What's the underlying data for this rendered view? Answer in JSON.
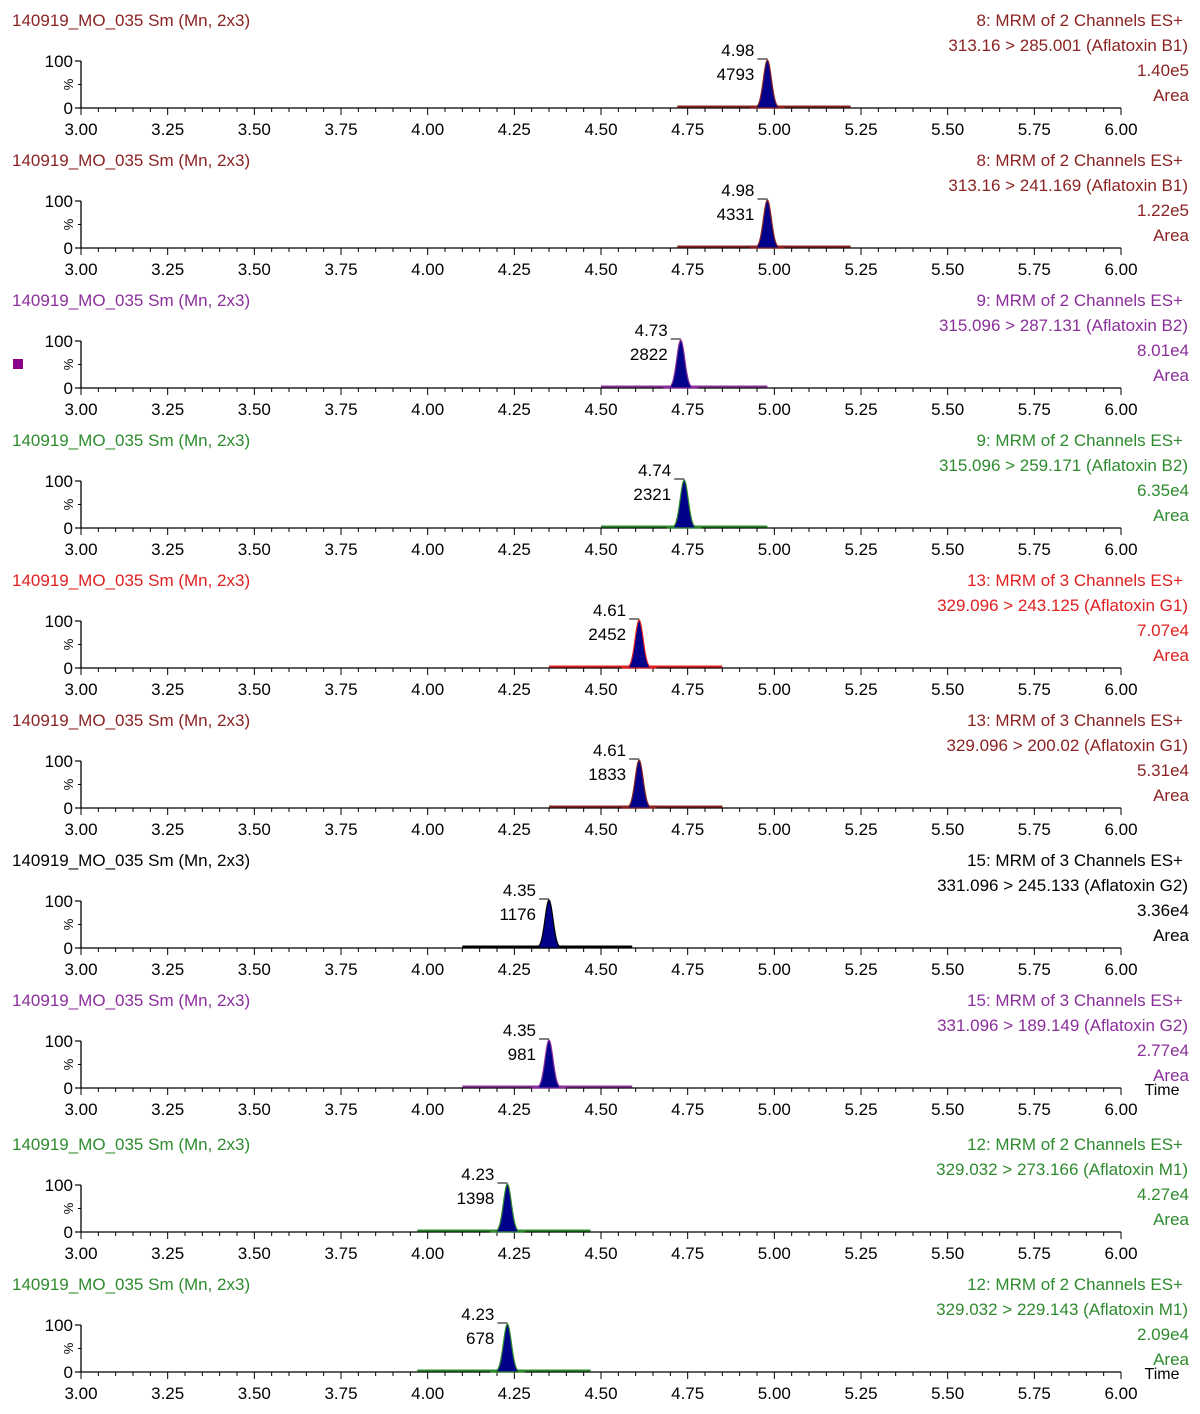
{
  "x_axis": {
    "min": 3.0,
    "max": 6.0,
    "ticks": [
      "3.00",
      "3.25",
      "3.50",
      "3.75",
      "4.00",
      "4.25",
      "4.50",
      "4.75",
      "5.00",
      "5.25",
      "5.50",
      "5.75",
      "6.00"
    ],
    "title": "Time"
  },
  "y_axis": {
    "ticks": [
      "100",
      "0"
    ],
    "label": "%"
  },
  "colors": {
    "peak_fill": "#00008b",
    "axis": "#000000",
    "trace_b1a": "#8b2323",
    "trace_b1b": "#8b2323",
    "trace_b2a": "#8b2f9b",
    "trace_b2b": "#2e8b2e",
    "trace_g1a": "#e02020",
    "trace_g1b": "#8b2323",
    "trace_g2a": "#000000",
    "trace_g2b": "#8b2f9b",
    "trace_m1a": "#2e8b2e",
    "trace_m1b": "#2e8b2e",
    "marker": "#8b008b"
  },
  "chart_data": {
    "type": "line",
    "panels": [
      {
        "sample": "140919_MO_035 Sm (Mn, 2x3)",
        "function": "8: MRM of 2 Channels ES+",
        "transition": "313.16 > 285.001 (Aflatoxin B1)",
        "intensity": "1.40e5",
        "mode": "Area",
        "peak_rt": "4.98",
        "peak_area": "4793",
        "rt": 4.98,
        "base": [
          4.72,
          5.22
        ]
      },
      {
        "sample": "140919_MO_035 Sm (Mn, 2x3)",
        "function": "8: MRM of 2 Channels ES+",
        "transition": "313.16 > 241.169 (Aflatoxin B1)",
        "intensity": "1.22e5",
        "mode": "Area",
        "peak_rt": "4.98",
        "peak_area": "4331",
        "rt": 4.98,
        "base": [
          4.72,
          5.22
        ]
      },
      {
        "sample": "140919_MO_035 Sm (Mn, 2x3)",
        "function": "9: MRM of 2 Channels ES+",
        "transition": "315.096 > 287.131 (Aflatoxin B2)",
        "intensity": "8.01e4",
        "mode": "Area",
        "peak_rt": "4.73",
        "peak_area": "2822",
        "rt": 4.73,
        "base": [
          4.5,
          4.98
        ]
      },
      {
        "sample": "140919_MO_035 Sm (Mn, 2x3)",
        "function": "9: MRM of 2 Channels ES+",
        "transition": "315.096 > 259.171 (Aflatoxin B2)",
        "intensity": "6.35e4",
        "mode": "Area",
        "peak_rt": "4.74",
        "peak_area": "2321",
        "rt": 4.74,
        "base": [
          4.5,
          4.98
        ]
      },
      {
        "sample": "140919_MO_035 Sm (Mn, 2x3)",
        "function": "13: MRM of 3 Channels ES+",
        "transition": "329.096 > 243.125 (Aflatoxin G1)",
        "intensity": "7.07e4",
        "mode": "Area",
        "peak_rt": "4.61",
        "peak_area": "2452",
        "rt": 4.61,
        "base": [
          4.35,
          4.85
        ]
      },
      {
        "sample": "140919_MO_035 Sm (Mn, 2x3)",
        "function": "13: MRM of 3 Channels ES+",
        "transition": "329.096 > 200.02 (Aflatoxin G1)",
        "intensity": "5.31e4",
        "mode": "Area",
        "peak_rt": "4.61",
        "peak_area": "1833",
        "rt": 4.61,
        "base": [
          4.35,
          4.85
        ]
      },
      {
        "sample": "140919_MO_035 Sm (Mn, 2x3)",
        "function": "15: MRM of 3 Channels ES+",
        "transition": "331.096 > 245.133 (Aflatoxin G2)",
        "intensity": "3.36e4",
        "mode": "Area",
        "peak_rt": "4.35",
        "peak_area": "1176",
        "rt": 4.35,
        "base": [
          4.1,
          4.59
        ]
      },
      {
        "sample": "140919_MO_035 Sm (Mn, 2x3)",
        "function": "15: MRM of 3 Channels ES+",
        "transition": "331.096 > 189.149 (Aflatoxin G2)",
        "intensity": "2.77e4",
        "mode": "Area",
        "peak_rt": "4.35",
        "peak_area": "981",
        "rt": 4.35,
        "base": [
          4.1,
          4.59
        ],
        "time_label": true
      },
      {
        "sample": "140919_MO_035 Sm (Mn, 2x3)",
        "function": "12: MRM of 2 Channels ES+",
        "transition": "329.032 > 273.166 (Aflatoxin M1)",
        "intensity": "4.27e4",
        "mode": "Area",
        "peak_rt": "4.23",
        "peak_area": "1398",
        "rt": 4.23,
        "base": [
          3.97,
          4.47
        ]
      },
      {
        "sample": "140919_MO_035 Sm (Mn, 2x3)",
        "function": "12: MRM of 2 Channels ES+",
        "transition": "329.032 > 229.143 (Aflatoxin M1)",
        "intensity": "2.09e4",
        "mode": "Area",
        "peak_rt": "4.23",
        "peak_area": "678",
        "rt": 4.23,
        "base": [
          3.97,
          4.47
        ],
        "time_label": true
      }
    ]
  }
}
